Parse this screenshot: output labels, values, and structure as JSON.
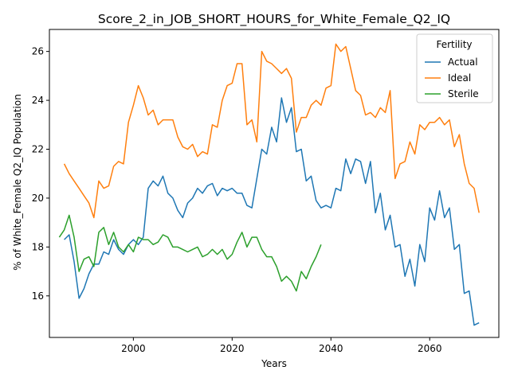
{
  "chart_data": {
    "type": "line",
    "title": "Score_2_in_JOB_SHORT_HOURS_for_White_Female_Q2_IQ",
    "xlabel": "Years",
    "ylabel": "% of White_Female Q2_IQ Population",
    "xlim": [
      1983,
      2074
    ],
    "ylim": [
      14.3,
      26.9
    ],
    "xticks": [
      2000,
      2020,
      2040,
      2060
    ],
    "yticks": [
      16,
      18,
      20,
      22,
      24,
      26
    ],
    "grid": false,
    "legend": {
      "title": "Fertility",
      "placement": "top-right"
    },
    "series": [
      {
        "name": "Actual",
        "color": "#1f77b4",
        "x": [
          1986,
          1987,
          1988,
          1989,
          1990,
          1991,
          1992,
          1993,
          1994,
          1995,
          1996,
          1997,
          1998,
          1999,
          2000,
          2001,
          2002,
          2003,
          2004,
          2005,
          2006,
          2007,
          2008,
          2009,
          2010,
          2011,
          2012,
          2013,
          2014,
          2015,
          2016,
          2017,
          2018,
          2019,
          2020,
          2021,
          2022,
          2023,
          2024,
          2025,
          2026,
          2027,
          2028,
          2029,
          2030,
          2031,
          2032,
          2033,
          2034,
          2035,
          2036,
          2037,
          2038,
          2039,
          2040,
          2041,
          2042,
          2043,
          2044,
          2045,
          2046,
          2047,
          2048,
          2049,
          2050,
          2051,
          2052,
          2053,
          2054,
          2055,
          2056,
          2057,
          2058,
          2059,
          2060,
          2061,
          2062,
          2063,
          2064,
          2065,
          2066,
          2067,
          2068,
          2069,
          2070
        ],
        "values": [
          18.3,
          18.5,
          17.4,
          15.9,
          16.3,
          16.9,
          17.3,
          17.3,
          17.8,
          17.7,
          18.3,
          17.9,
          17.7,
          18.1,
          18.3,
          18.1,
          18.4,
          20.4,
          20.7,
          20.5,
          20.9,
          20.2,
          20.0,
          19.5,
          19.2,
          19.8,
          20.0,
          20.4,
          20.2,
          20.5,
          20.6,
          20.1,
          20.4,
          20.3,
          20.4,
          20.2,
          20.2,
          19.7,
          19.6,
          20.8,
          22.0,
          21.8,
          22.9,
          22.3,
          24.1,
          23.1,
          23.7,
          21.9,
          22.0,
          20.7,
          20.9,
          19.9,
          19.6,
          19.7,
          19.6,
          20.4,
          20.3,
          21.6,
          21.0,
          21.6,
          21.5,
          20.6,
          21.5,
          19.4,
          20.2,
          18.7,
          19.3,
          18.0,
          18.1,
          16.8,
          17.5,
          16.4,
          18.1,
          17.4,
          19.6,
          19.1,
          20.3,
          19.2,
          19.6,
          17.9,
          18.1,
          16.1,
          16.2,
          14.8,
          14.9
        ]
      },
      {
        "name": "Ideal",
        "color": "#ff7f0e",
        "x": [
          1986,
          1987,
          1988,
          1989,
          1990,
          1991,
          1992,
          1993,
          1994,
          1995,
          1996,
          1997,
          1998,
          1999,
          2000,
          2001,
          2002,
          2003,
          2004,
          2005,
          2006,
          2007,
          2008,
          2009,
          2010,
          2011,
          2012,
          2013,
          2014,
          2015,
          2016,
          2017,
          2018,
          2019,
          2020,
          2021,
          2022,
          2023,
          2024,
          2025,
          2026,
          2027,
          2028,
          2029,
          2030,
          2031,
          2032,
          2033,
          2034,
          2035,
          2036,
          2037,
          2038,
          2039,
          2040,
          2041,
          2042,
          2043,
          2044,
          2045,
          2046,
          2047,
          2048,
          2049,
          2050,
          2051,
          2052,
          2053,
          2054,
          2055,
          2056,
          2057,
          2058,
          2059,
          2060,
          2061,
          2062,
          2063,
          2064,
          2065,
          2066,
          2067,
          2068,
          2069,
          2070
        ],
        "values": [
          21.4,
          21.0,
          20.7,
          20.4,
          20.1,
          19.8,
          19.2,
          20.7,
          20.4,
          20.5,
          21.3,
          21.5,
          21.4,
          23.1,
          23.8,
          24.6,
          24.1,
          23.4,
          23.6,
          23.0,
          23.2,
          23.2,
          23.2,
          22.5,
          22.1,
          22.0,
          22.2,
          21.7,
          21.9,
          21.8,
          23.0,
          22.9,
          24.0,
          24.6,
          24.7,
          25.5,
          25.5,
          23.0,
          23.2,
          22.3,
          26.0,
          25.6,
          25.5,
          25.3,
          25.1,
          25.3,
          24.9,
          22.7,
          23.3,
          23.3,
          23.8,
          24.0,
          23.8,
          24.5,
          24.6,
          26.3,
          26.0,
          26.2,
          25.3,
          24.4,
          24.2,
          23.4,
          23.5,
          23.3,
          23.7,
          23.5,
          24.4,
          20.8,
          21.4,
          21.5,
          22.3,
          21.8,
          23.0,
          22.8,
          23.1,
          23.1,
          23.3,
          23.0,
          23.2,
          22.1,
          22.6,
          21.4,
          20.6,
          20.4,
          19.4
        ]
      },
      {
        "name": "Sterile",
        "color": "#2ca02c",
        "x": [
          1985,
          1986,
          1987,
          1988,
          1989,
          1990,
          1991,
          1992,
          1993,
          1994,
          1995,
          1996,
          1997,
          1998,
          1999,
          2000,
          2001,
          2002,
          2003,
          2004,
          2005,
          2006,
          2007,
          2008,
          2009,
          2010,
          2011,
          2012,
          2013,
          2014,
          2015,
          2016,
          2017,
          2018,
          2019,
          2020,
          2021,
          2022,
          2023,
          2024,
          2025,
          2026,
          2027,
          2028,
          2029,
          2030,
          2031,
          2032,
          2033,
          2034,
          2035,
          2036,
          2037,
          2038
        ],
        "values": [
          18.4,
          18.7,
          19.3,
          18.4,
          17.0,
          17.5,
          17.6,
          17.2,
          18.6,
          18.8,
          18.1,
          18.6,
          18.0,
          17.8,
          18.1,
          17.8,
          18.4,
          18.3,
          18.3,
          18.1,
          18.2,
          18.5,
          18.4,
          18.0,
          18.0,
          17.9,
          17.8,
          17.9,
          18.0,
          17.6,
          17.7,
          17.9,
          17.7,
          17.9,
          17.5,
          17.7,
          18.2,
          18.6,
          18.0,
          18.4,
          18.4,
          17.9,
          17.6,
          17.6,
          17.2,
          16.6,
          16.8,
          16.6,
          16.2,
          17.0,
          16.7,
          17.2,
          17.6,
          18.1
        ]
      }
    ]
  }
}
